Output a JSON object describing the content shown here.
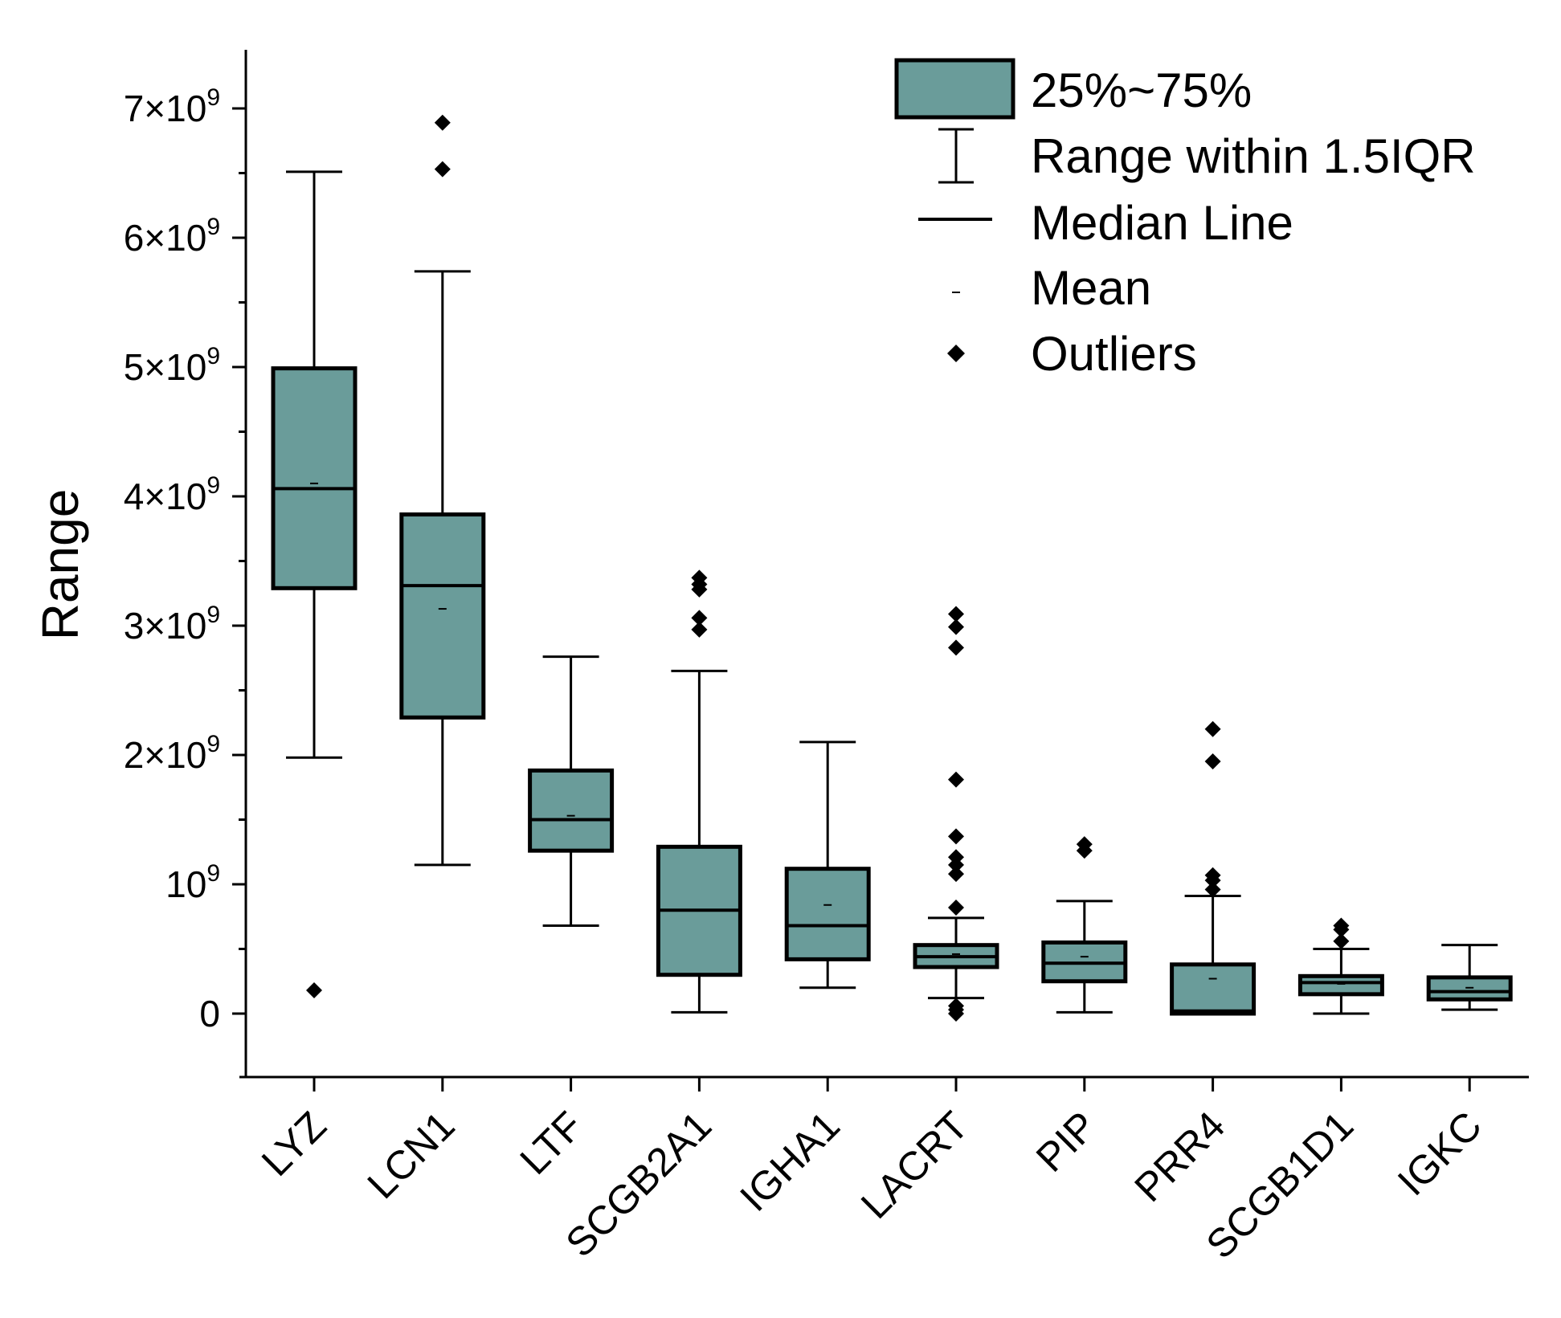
{
  "chart_data": {
    "type": "box",
    "title": "",
    "xlabel": "",
    "ylabel": "Range",
    "ylim": [
      -500000000,
      7500000000
    ],
    "ytick_labels": [
      {
        "value": 0,
        "base": "0",
        "exp": ""
      },
      {
        "value": 1000000000,
        "base": "10",
        "exp": "9"
      },
      {
        "value": 2000000000,
        "base": "2×10",
        "exp": "9"
      },
      {
        "value": 3000000000,
        "base": "3×10",
        "exp": "9"
      },
      {
        "value": 4000000000,
        "base": "4×10",
        "exp": "9"
      },
      {
        "value": 5000000000,
        "base": "5×10",
        "exp": "9"
      },
      {
        "value": 6000000000,
        "base": "6×10",
        "exp": "9"
      },
      {
        "value": 7000000000,
        "base": "7×10",
        "exp": "9"
      }
    ],
    "box_color": "#6a9c9a",
    "categories": [
      "LYZ",
      "LCN1",
      "LTF",
      "SCGB2A1",
      "IGHA1",
      "LACRT",
      "PIP",
      "PRR4",
      "SCGB1D1",
      "IGKC"
    ],
    "boxes": [
      {
        "name": "LYZ",
        "whisker_low": 1980000000,
        "q1": 3290000000,
        "median": 4060000000,
        "q3": 4990000000,
        "whisker_high": 6510000000,
        "mean": 4100000000,
        "outliers": [
          180000000
        ]
      },
      {
        "name": "LCN1",
        "whisker_low": 1150000000,
        "q1": 2290000000,
        "median": 3310000000,
        "q3": 3860000000,
        "whisker_high": 5740000000,
        "mean": 3130000000,
        "outliers": [
          6530000000,
          6890000000
        ]
      },
      {
        "name": "LTF",
        "whisker_low": 680000000,
        "q1": 1260000000,
        "median": 1500000000,
        "q3": 1880000000,
        "whisker_high": 2760000000,
        "mean": 1530000000,
        "outliers": []
      },
      {
        "name": "SCGB2A1",
        "whisker_low": 10000000,
        "q1": 300000000,
        "median": 800000000,
        "q3": 1290000000,
        "whisker_high": 2650000000,
        "mean": 800000000,
        "outliers": [
          2970000000,
          3060000000,
          3280000000,
          3320000000,
          3370000000
        ]
      },
      {
        "name": "IGHA1",
        "whisker_low": 200000000,
        "q1": 420000000,
        "median": 680000000,
        "q3": 1120000000,
        "whisker_high": 2100000000,
        "mean": 840000000,
        "outliers": []
      },
      {
        "name": "LACRT",
        "whisker_low": 120000000,
        "q1": 360000000,
        "median": 440000000,
        "q3": 530000000,
        "whisker_high": 740000000,
        "mean": 460000000,
        "outliers": [
          0,
          30000000,
          60000000,
          820000000,
          1080000000,
          1150000000,
          1210000000,
          1370000000,
          1810000000,
          2830000000,
          2990000000,
          3090000000
        ]
      },
      {
        "name": "PIP",
        "whisker_low": 10000000,
        "q1": 250000000,
        "median": 390000000,
        "q3": 550000000,
        "whisker_high": 870000000,
        "mean": 440000000,
        "outliers": [
          1260000000,
          1310000000
        ]
      },
      {
        "name": "PRR4",
        "whisker_low": 0,
        "q1": 0,
        "median": 20000000,
        "q3": 380000000,
        "whisker_high": 910000000,
        "mean": 270000000,
        "outliers": [
          960000000,
          1030000000,
          1070000000,
          1950000000,
          2200000000
        ]
      },
      {
        "name": "SCGB1D1",
        "whisker_low": 0,
        "q1": 150000000,
        "median": 240000000,
        "q3": 290000000,
        "whisker_high": 500000000,
        "mean": 230000000,
        "outliers": [
          560000000,
          650000000,
          680000000
        ]
      },
      {
        "name": "IGKC",
        "whisker_low": 30000000,
        "q1": 110000000,
        "median": 170000000,
        "q3": 280000000,
        "whisker_high": 530000000,
        "mean": 200000000,
        "outliers": []
      }
    ],
    "legend": {
      "position": "top-right",
      "items": [
        {
          "kind": "box",
          "label": "25%~75%"
        },
        {
          "kind": "whisker",
          "label": "Range within 1.5IQR"
        },
        {
          "kind": "median",
          "label": "Median Line"
        },
        {
          "kind": "mean",
          "label": "Mean"
        },
        {
          "kind": "outlier",
          "label": "Outliers"
        }
      ]
    }
  }
}
